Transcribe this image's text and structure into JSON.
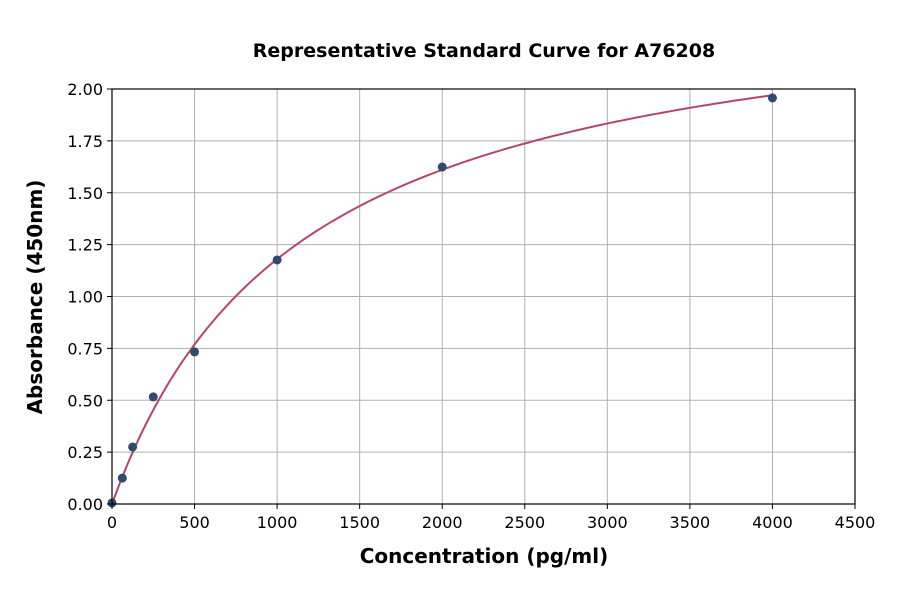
{
  "chart_data": {
    "type": "scatter",
    "title": "Representative Standard Curve for A76208",
    "xlabel": "Concentration (pg/ml)",
    "ylabel": "Absorbance (450nm)",
    "xlim": [
      0,
      4500
    ],
    "ylim": [
      0,
      2.0
    ],
    "x_ticks": [
      "0",
      "500",
      "1000",
      "1500",
      "2000",
      "2500",
      "3000",
      "3500",
      "4000",
      "4500"
    ],
    "y_ticks": [
      "0.00",
      "0.25",
      "0.50",
      "0.75",
      "1.00",
      "1.25",
      "1.50",
      "1.75",
      "2.00"
    ],
    "grid": true,
    "points": {
      "x": [
        0,
        62.5,
        125,
        250,
        500,
        1000,
        2000,
        4000
      ],
      "y": [
        0.005,
        0.125,
        0.275,
        0.516,
        0.733,
        1.176,
        1.624,
        1.957
      ]
    },
    "fit_curve": true,
    "colors": {
      "points": "#2e4a6e",
      "curve": "#b5466b",
      "grid": "#b0b0b0"
    }
  }
}
